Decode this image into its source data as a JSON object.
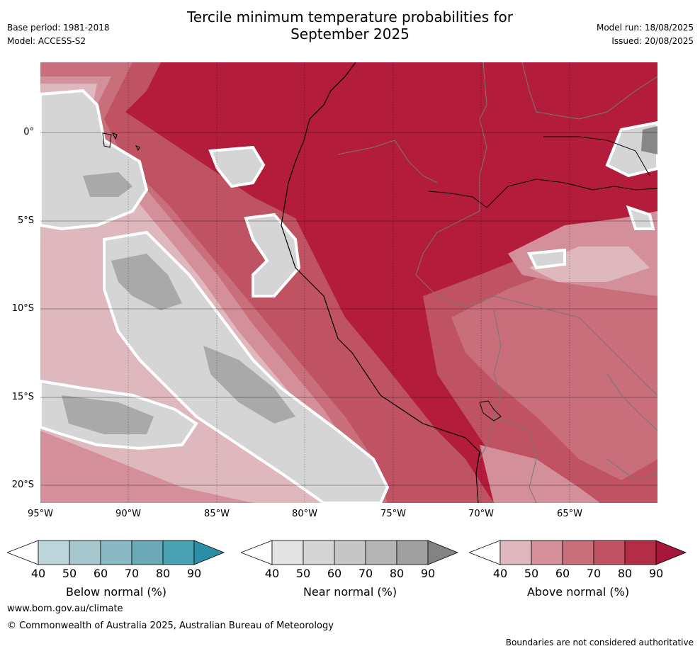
{
  "header": {
    "title_line1": "Tercile minimum temperature probabilities for",
    "title_line2": "September 2025",
    "base_period": "Base period: 1981-2018",
    "model": "Model: ACCESS-S2",
    "model_run": "Model run: 18/08/2025",
    "issued": "Issued: 20/08/2025"
  },
  "axes": {
    "y_ticks": [
      "0°",
      "5°S",
      "10°S",
      "15°S",
      "20°S"
    ],
    "x_ticks": [
      "95°W",
      "90°W",
      "85°W",
      "80°W",
      "75°W",
      "70°W",
      "65°W"
    ]
  },
  "colorbars": [
    {
      "label": "Below normal (%)",
      "ticks": [
        "40",
        "50",
        "60",
        "70",
        "80",
        "90"
      ],
      "colors": [
        "#ffffff",
        "#bcd5da",
        "#a5c6cd",
        "#8ab8c3",
        "#6ca9b6",
        "#4aa1b1",
        "#2b8ea6"
      ]
    },
    {
      "label": "Near normal (%)",
      "ticks": [
        "40",
        "50",
        "60",
        "70",
        "80",
        "90"
      ],
      "colors": [
        "#ffffff",
        "#e3e3e3",
        "#d5d5d5",
        "#c6c6c6",
        "#b5b5b5",
        "#a0a0a0",
        "#838383"
      ]
    },
    {
      "label": "Above normal (%)",
      "ticks": [
        "40",
        "50",
        "60",
        "70",
        "80",
        "90"
      ],
      "colors": [
        "#ffffff",
        "#dfb8bd",
        "#d4909a",
        "#c96e7b",
        "#c05363",
        "#b22d45",
        "#a5163a"
      ]
    }
  ],
  "footer": {
    "url": "www.bom.gov.au/climate",
    "copyright": "© Commonwealth of Australia 2025, Australian Bureau of Meteorology",
    "disclaimer": "Boundaries are not considered authoritative"
  }
}
